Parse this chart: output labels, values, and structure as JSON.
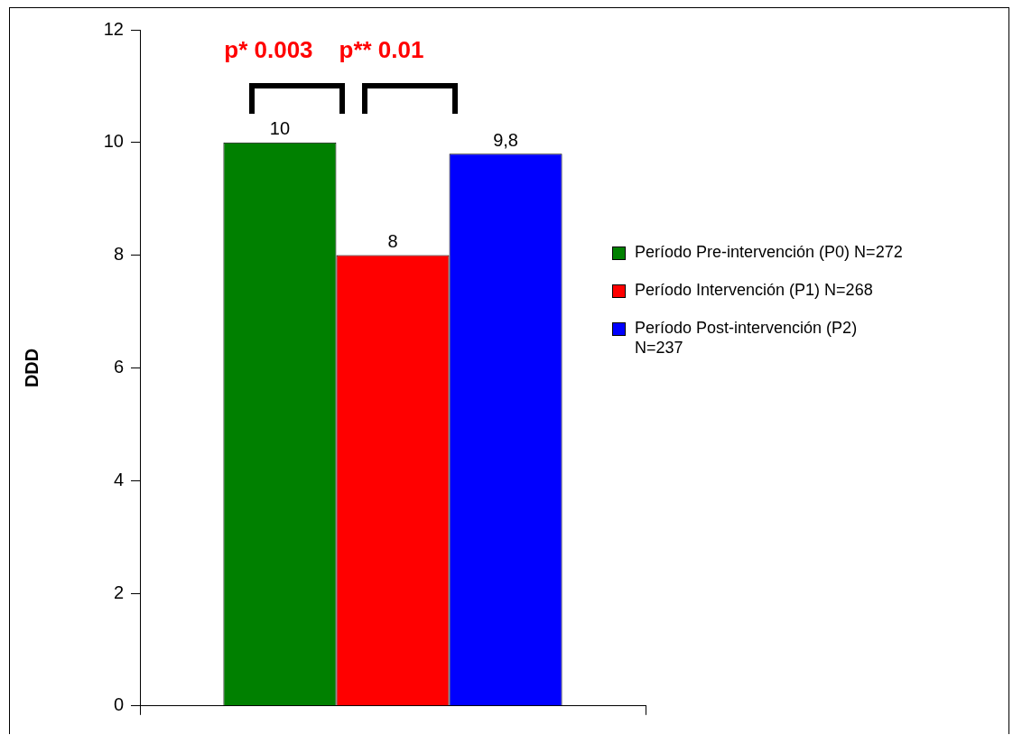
{
  "chart_data": {
    "type": "bar",
    "ylabel": "DDD",
    "categories": [
      null
    ],
    "series": [
      {
        "name": "Período Pre-intervención (P0) N=272",
        "color": "#008000",
        "values": [
          10
        ],
        "value_labels": [
          "10"
        ]
      },
      {
        "name": "Período Intervención (P1) N=268",
        "color": "#ff0000",
        "values": [
          8
        ],
        "value_labels": [
          "8"
        ]
      },
      {
        "name": "Período Post-intervención (P2) N=237",
        "color": "#0000ff",
        "values": [
          9.8
        ],
        "value_labels": [
          "9,8"
        ]
      }
    ],
    "ylim": [
      0,
      12
    ],
    "yticks": [
      0,
      2,
      4,
      6,
      8,
      10,
      12
    ],
    "legend": "right",
    "annotations": [
      "p* 0.003",
      "p** 0.01"
    ]
  }
}
